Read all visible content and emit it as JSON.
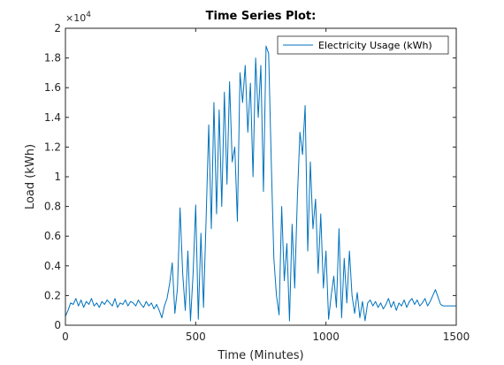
{
  "chart_data": {
    "type": "line",
    "title": "Time Series Plot:",
    "xlabel": "Time (Minutes)",
    "ylabel": "Load (kWh)",
    "xlim": [
      0,
      1500
    ],
    "ylim": [
      0,
      20000
    ],
    "xticks": [
      0,
      500,
      1000,
      1500
    ],
    "xtick_labels": [
      "0",
      "500",
      "1000",
      "1500"
    ],
    "yticks": [
      0,
      2000,
      4000,
      6000,
      8000,
      10000,
      12000,
      14000,
      16000,
      18000,
      20000
    ],
    "ytick_labels": [
      "0",
      "0.2",
      "0.4",
      "0.6",
      "0.8",
      "1",
      "1.2",
      "1.4",
      "1.6",
      "1.8",
      "2"
    ],
    "y_exponent_base": "×10",
    "y_exponent_power": "4",
    "grid": false,
    "legend_position": "top-right",
    "line_color": "#0072bd",
    "series": [
      {
        "name": "Electricity Usage (kWh)",
        "x": [
          0,
          10,
          20,
          30,
          40,
          50,
          60,
          70,
          80,
          90,
          100,
          110,
          120,
          130,
          140,
          150,
          160,
          170,
          180,
          190,
          200,
          210,
          220,
          230,
          240,
          250,
          260,
          270,
          280,
          290,
          300,
          310,
          320,
          330,
          340,
          350,
          360,
          370,
          380,
          390,
          400,
          410,
          420,
          430,
          440,
          450,
          460,
          470,
          480,
          490,
          500,
          510,
          520,
          530,
          540,
          550,
          560,
          570,
          580,
          590,
          600,
          610,
          620,
          630,
          640,
          650,
          660,
          670,
          680,
          690,
          700,
          710,
          720,
          730,
          740,
          750,
          760,
          770,
          780,
          790,
          800,
          810,
          820,
          830,
          840,
          850,
          860,
          870,
          880,
          890,
          900,
          910,
          920,
          930,
          940,
          950,
          960,
          970,
          980,
          990,
          1000,
          1010,
          1020,
          1030,
          1040,
          1050,
          1060,
          1070,
          1080,
          1090,
          1100,
          1110,
          1120,
          1130,
          1140,
          1150,
          1160,
          1170,
          1180,
          1190,
          1200,
          1210,
          1220,
          1230,
          1240,
          1250,
          1260,
          1270,
          1280,
          1290,
          1300,
          1310,
          1320,
          1330,
          1340,
          1350,
          1360,
          1370,
          1380,
          1390,
          1400,
          1410,
          1420,
          1430,
          1440,
          1450,
          1460,
          1470,
          1480,
          1490,
          1500
        ],
        "values": [
          600,
          1000,
          1500,
          1400,
          1800,
          1300,
          1700,
          1200,
          1600,
          1400,
          1800,
          1300,
          1500,
          1200,
          1600,
          1400,
          1700,
          1500,
          1300,
          1800,
          1200,
          1500,
          1400,
          1700,
          1300,
          1600,
          1500,
          1300,
          1700,
          1400,
          1200,
          1600,
          1300,
          1500,
          1100,
          1400,
          1000,
          500,
          1300,
          1800,
          2800,
          4200,
          800,
          2500,
          7900,
          3500,
          1000,
          5000,
          300,
          3500,
          8100,
          400,
          6200,
          1200,
          7200,
          13500,
          6500,
          15000,
          7500,
          14500,
          8000,
          15700,
          9500,
          16400,
          11000,
          12000,
          7000,
          17000,
          15000,
          17500,
          13000,
          16300,
          10000,
          18000,
          14000,
          17500,
          9000,
          18800,
          18300,
          11000,
          4500,
          2000,
          700,
          8000,
          3000,
          5500,
          300,
          6800,
          2500,
          8500,
          13000,
          11500,
          14800,
          5000,
          11000,
          6500,
          8500,
          3500,
          7500,
          2500,
          5000,
          400,
          2000,
          3300,
          1200,
          6500,
          500,
          4500,
          1500,
          5000,
          2000,
          800,
          2200,
          500,
          1600,
          300,
          1500,
          1700,
          1300,
          1600,
          1200,
          1500,
          1100,
          1400,
          1800,
          1200,
          1600,
          1000,
          1500,
          1300,
          1700,
          1200,
          1600,
          1800,
          1400,
          1700,
          1300,
          1500,
          1800,
          1300,
          1600,
          2000,
          2400,
          1900,
          1400,
          1300,
          1300,
          1300,
          1300,
          1300,
          1300
        ]
      }
    ]
  }
}
